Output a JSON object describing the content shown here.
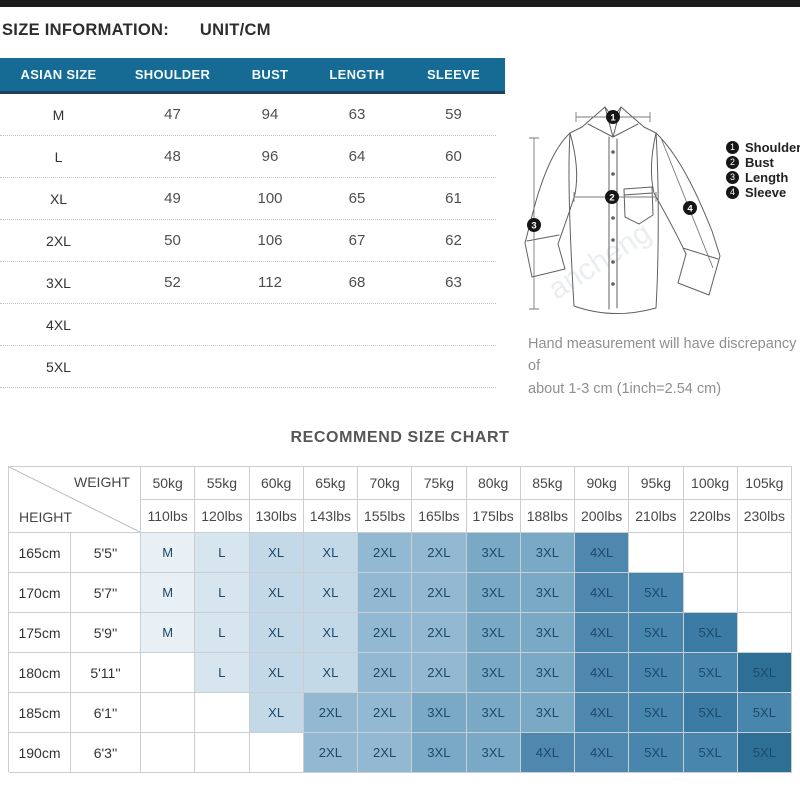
{
  "header": {
    "title": "SIZE INFORMATION:",
    "unit": "UNIT/CM"
  },
  "size_table": {
    "columns": [
      "ASIAN SIZE",
      "SHOULDER",
      "BUST",
      "LENGTH",
      "SLEEVE"
    ],
    "rows": [
      [
        "M",
        "47",
        "94",
        "63",
        "59"
      ],
      [
        "L",
        "48",
        "96",
        "64",
        "60"
      ],
      [
        "XL",
        "49",
        "100",
        "65",
        "61"
      ],
      [
        "2XL",
        "50",
        "106",
        "67",
        "62"
      ],
      [
        "3XL",
        "52",
        "112",
        "68",
        "63"
      ],
      [
        "4XL",
        "",
        "",
        "",
        ""
      ],
      [
        "5XL",
        "",
        "",
        "",
        ""
      ]
    ]
  },
  "diagram": {
    "legend": [
      {
        "num": "1",
        "label": "Shoulder"
      },
      {
        "num": "2",
        "label": "Bust"
      },
      {
        "num": "3",
        "label": "Length"
      },
      {
        "num": "4",
        "label": "Sleeve"
      }
    ],
    "watermark": "ancheng",
    "note_line1": "Hand measurement will have discrepancy of",
    "note_line2": "about 1-3 cm  (1inch=2.54 cm)"
  },
  "recommend": {
    "title": "RECOMMEND SIZE CHART",
    "corner": {
      "top": "WEIGHT",
      "bottom": "HEIGHT"
    },
    "weights_kg": [
      "50kg",
      "55kg",
      "60kg",
      "65kg",
      "70kg",
      "75kg",
      "80kg",
      "85kg",
      "90kg",
      "95kg",
      "100kg",
      "105kg"
    ],
    "weights_lbs": [
      "110lbs",
      "120lbs",
      "130lbs",
      "143lbs",
      "155lbs",
      "165lbs",
      "175lbs",
      "188lbs",
      "200lbs",
      "210lbs",
      "220lbs",
      "230lbs"
    ],
    "heights": [
      {
        "cm": "165cm",
        "ft": "5'5''"
      },
      {
        "cm": "170cm",
        "ft": "5'7''"
      },
      {
        "cm": "175cm",
        "ft": "5'9''"
      },
      {
        "cm": "180cm",
        "ft": "5'11''"
      },
      {
        "cm": "185cm",
        "ft": "6'1''"
      },
      {
        "cm": "190cm",
        "ft": "6'3''"
      }
    ],
    "matrix": [
      [
        "M",
        "L",
        "XL",
        "XL",
        "2XL",
        "2XL",
        "3XL",
        "3XL",
        "4XL",
        "",
        "",
        ""
      ],
      [
        "M",
        "L",
        "XL",
        "XL",
        "2XL",
        "2XL",
        "3XL",
        "3XL",
        "4XL",
        "5XL",
        "",
        ""
      ],
      [
        "M",
        "L",
        "XL",
        "XL",
        "2XL",
        "2XL",
        "3XL",
        "3XL",
        "4XL",
        "5XL",
        "5XL",
        ""
      ],
      [
        "",
        "L",
        "XL",
        "XL",
        "2XL",
        "2XL",
        "3XL",
        "3XL",
        "4XL",
        "5XL",
        "5XL",
        "5XL"
      ],
      [
        "",
        "",
        "XL",
        "2XL",
        "2XL",
        "3XL",
        "3XL",
        "3XL",
        "4XL",
        "5XL",
        "5XL",
        "5XL"
      ],
      [
        "",
        "",
        "",
        "2XL",
        "2XL",
        "3XL",
        "3XL",
        "4XL",
        "4XL",
        "5XL",
        "5XL",
        "5XL"
      ]
    ],
    "cell_colors": {
      "M": "#e8eff5",
      "L": "#d7e5ef",
      "XL": "#c3d9e8",
      "2XL": "#93b8d1",
      "3XL": "#7aa9c6",
      "4XL": "#4e88af",
      "5XL": "#4986ad",
      "semidark": "#3c7ba3",
      "dark": "#2d6f95"
    },
    "shade_overrides": {
      "2,10": "semidark",
      "3,11": "dark",
      "4,10": "semidark",
      "5,11": "dark"
    }
  }
}
